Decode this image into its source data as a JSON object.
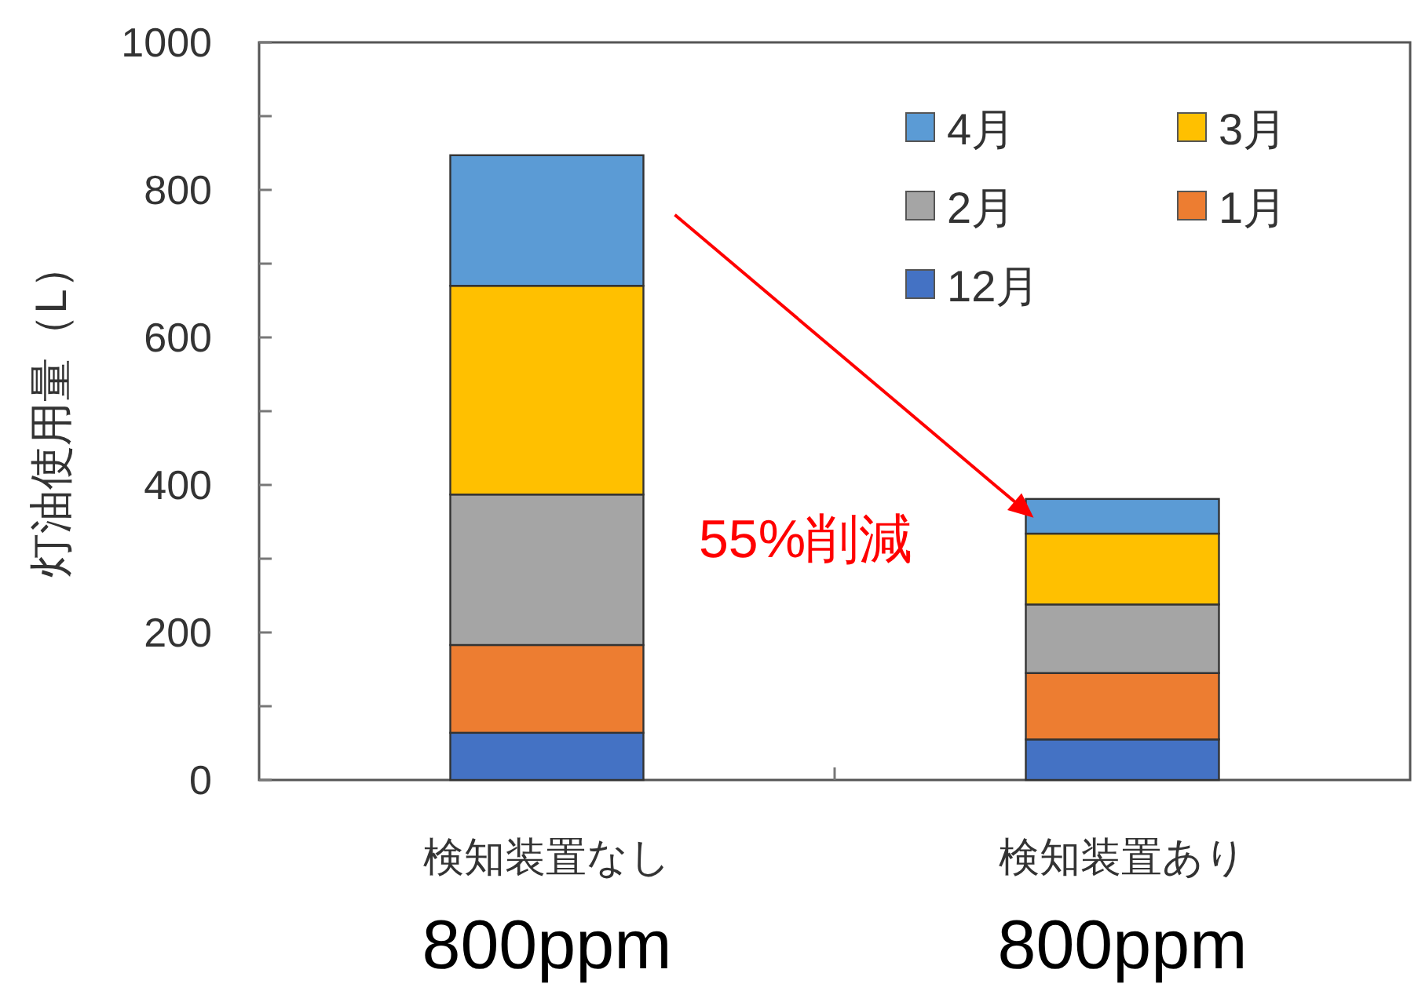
{
  "chart_data": {
    "type": "bar",
    "stacked": true,
    "ylabel": "灯油使用量（L）",
    "categories": [
      "検知装置なし",
      "検知装置あり"
    ],
    "series": [
      {
        "name": "12月",
        "color": "#4472c4",
        "values": [
          64,
          55
        ]
      },
      {
        "name": "1月",
        "color": "#ed7d31",
        "values": [
          119,
          90
        ]
      },
      {
        "name": "2月",
        "color": "#a5a5a5",
        "values": [
          204,
          93
        ]
      },
      {
        "name": "3月",
        "color": "#ffc000",
        "values": [
          283,
          96
        ]
      },
      {
        "name": "4月",
        "color": "#5b9bd5",
        "values": [
          177,
          47
        ]
      }
    ],
    "ylim": [
      0,
      1000
    ],
    "yticks": [
      0,
      {
        "value": 100,
        "label": null
      },
      200,
      {
        "value": 300,
        "label": null
      },
      400,
      {
        "value": 500,
        "label": null
      },
      600,
      {
        "value": 700,
        "label": null
      },
      800,
      {
        "value": 900,
        "label": null
      },
      1000
    ],
    "legend": "top right",
    "annotations": [
      "55%削減",
      "800ppm",
      "800ppm"
    ]
  }
}
